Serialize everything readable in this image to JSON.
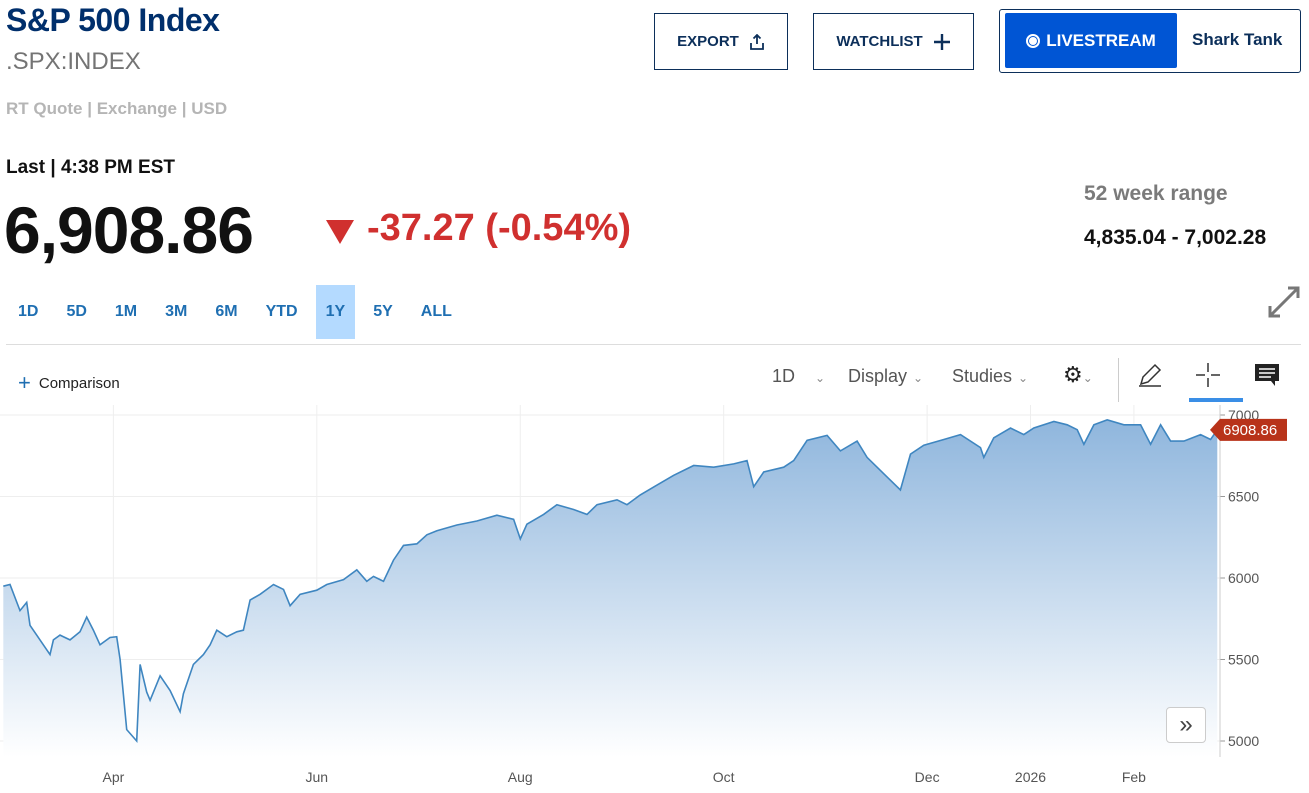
{
  "header": {
    "title": "S&P 500 Index",
    "symbol": ".SPX:INDEX",
    "quote_meta": "RT Quote | Exchange | USD"
  },
  "buttons": {
    "export": "EXPORT",
    "watchlist": "WATCHLIST",
    "livestream": "LIVESTREAM",
    "shark_tank": "Shark Tank"
  },
  "quote": {
    "last_time": "Last | 4:38 PM EST",
    "price": "6,908.86",
    "change": "-37.27 (-0.54%)",
    "direction": "down",
    "range_label": "52 week range",
    "range_value": "4,835.04 - 7,002.28"
  },
  "colors": {
    "brand": "#002f6c",
    "down": "#d0302f",
    "line": "#3f86c0",
    "fill_top": "#8fb6dd",
    "tab_active": "#b4daff",
    "price_tag": "#b8331a"
  },
  "range_tabs": [
    {
      "label": "1D"
    },
    {
      "label": "5D"
    },
    {
      "label": "1M"
    },
    {
      "label": "3M"
    },
    {
      "label": "6M"
    },
    {
      "label": "YTD"
    },
    {
      "label": "1Y",
      "active": true
    },
    {
      "label": "5Y"
    },
    {
      "label": "ALL"
    }
  ],
  "toolbar": {
    "comparison": "Comparison",
    "interval": "1D",
    "display": "Display",
    "studies": "Studies",
    "icons": [
      "gear-icon",
      "pencil-icon",
      "crosshair-icon",
      "comment-icon",
      "expand-icon",
      "double-chevron-right-icon"
    ]
  },
  "chart_data": {
    "type": "area",
    "ylim": [
      4980,
      7040
    ],
    "yticks": [
      {
        "label": "7000",
        "value": 7000
      },
      {
        "label": "6500",
        "value": 6500
      },
      {
        "label": "6000",
        "value": 6000
      },
      {
        "label": "5500",
        "value": 5500
      },
      {
        "label": "5000",
        "value": 5000
      }
    ],
    "xticks": [
      {
        "label": "Apr",
        "date": "2025-04-01"
      },
      {
        "label": "Jun",
        "date": "2025-06-01"
      },
      {
        "label": "Aug",
        "date": "2025-08-01"
      },
      {
        "label": "Oct",
        "date": "2025-10-01"
      },
      {
        "label": "Dec",
        "date": "2025-12-01"
      },
      {
        "label": "2026",
        "date": "2026-01-01"
      },
      {
        "label": "Feb",
        "date": "2026-02-01"
      }
    ],
    "xlim": [
      "2025-02-26",
      "2026-02-28"
    ],
    "last_value_label": "6908.86",
    "points": [
      [
        "2025-02-27",
        5950
      ],
      [
        "2025-03-01",
        5960
      ],
      [
        "2025-03-04",
        5800
      ],
      [
        "2025-03-06",
        5850
      ],
      [
        "2025-03-07",
        5710
      ],
      [
        "2025-03-10",
        5620
      ],
      [
        "2025-03-13",
        5530
      ],
      [
        "2025-03-14",
        5620
      ],
      [
        "2025-03-16",
        5650
      ],
      [
        "2025-03-19",
        5620
      ],
      [
        "2025-03-22",
        5670
      ],
      [
        "2025-03-24",
        5760
      ],
      [
        "2025-03-26",
        5680
      ],
      [
        "2025-03-28",
        5590
      ],
      [
        "2025-03-31",
        5635
      ],
      [
        "2025-04-02",
        5640
      ],
      [
        "2025-04-03",
        5500
      ],
      [
        "2025-04-05",
        5070
      ],
      [
        "2025-04-08",
        5000
      ],
      [
        "2025-04-09",
        5470
      ],
      [
        "2025-04-11",
        5300
      ],
      [
        "2025-04-12",
        5250
      ],
      [
        "2025-04-15",
        5400
      ],
      [
        "2025-04-18",
        5310
      ],
      [
        "2025-04-21",
        5180
      ],
      [
        "2025-04-22",
        5290
      ],
      [
        "2025-04-25",
        5470
      ],
      [
        "2025-04-28",
        5530
      ],
      [
        "2025-04-30",
        5590
      ],
      [
        "2025-05-02",
        5680
      ],
      [
        "2025-05-05",
        5640
      ],
      [
        "2025-05-08",
        5670
      ],
      [
        "2025-05-10",
        5680
      ],
      [
        "2025-05-12",
        5865
      ],
      [
        "2025-05-15",
        5900
      ],
      [
        "2025-05-19",
        5960
      ],
      [
        "2025-05-22",
        5930
      ],
      [
        "2025-05-24",
        5830
      ],
      [
        "2025-05-27",
        5900
      ],
      [
        "2025-06-01",
        5925
      ],
      [
        "2025-06-04",
        5960
      ],
      [
        "2025-06-09",
        5990
      ],
      [
        "2025-06-13",
        6050
      ],
      [
        "2025-06-16",
        5980
      ],
      [
        "2025-06-18",
        6010
      ],
      [
        "2025-06-21",
        5980
      ],
      [
        "2025-06-24",
        6110
      ],
      [
        "2025-06-27",
        6200
      ],
      [
        "2025-07-01",
        6210
      ],
      [
        "2025-07-04",
        6265
      ],
      [
        "2025-07-07",
        6290
      ],
      [
        "2025-07-13",
        6325
      ],
      [
        "2025-07-19",
        6350
      ],
      [
        "2025-07-25",
        6385
      ],
      [
        "2025-07-30",
        6360
      ],
      [
        "2025-08-01",
        6240
      ],
      [
        "2025-08-03",
        6330
      ],
      [
        "2025-08-08",
        6390
      ],
      [
        "2025-08-12",
        6450
      ],
      [
        "2025-08-17",
        6420
      ],
      [
        "2025-08-21",
        6390
      ],
      [
        "2025-08-24",
        6450
      ],
      [
        "2025-08-30",
        6480
      ],
      [
        "2025-09-02",
        6450
      ],
      [
        "2025-09-06",
        6510
      ],
      [
        "2025-09-11",
        6570
      ],
      [
        "2025-09-16",
        6630
      ],
      [
        "2025-09-22",
        6690
      ],
      [
        "2025-09-28",
        6680
      ],
      [
        "2025-10-04",
        6700
      ],
      [
        "2025-10-08",
        6720
      ],
      [
        "2025-10-10",
        6560
      ],
      [
        "2025-10-13",
        6650
      ],
      [
        "2025-10-19",
        6680
      ],
      [
        "2025-10-22",
        6720
      ],
      [
        "2025-10-26",
        6845
      ],
      [
        "2025-11-01",
        6875
      ],
      [
        "2025-11-05",
        6780
      ],
      [
        "2025-11-10",
        6840
      ],
      [
        "2025-11-13",
        6740
      ],
      [
        "2025-11-17",
        6660
      ],
      [
        "2025-11-20",
        6600
      ],
      [
        "2025-11-23",
        6540
      ],
      [
        "2025-11-26",
        6760
      ],
      [
        "2025-11-30",
        6815
      ],
      [
        "2025-12-06",
        6850
      ],
      [
        "2025-12-11",
        6880
      ],
      [
        "2025-12-17",
        6800
      ],
      [
        "2025-12-18",
        6740
      ],
      [
        "2025-12-21",
        6860
      ],
      [
        "2025-12-26",
        6920
      ],
      [
        "2025-12-30",
        6880
      ],
      [
        "2026-01-02",
        6920
      ],
      [
        "2026-01-08",
        6960
      ],
      [
        "2026-01-12",
        6940
      ],
      [
        "2026-01-15",
        6910
      ],
      [
        "2026-01-17",
        6820
      ],
      [
        "2026-01-20",
        6940
      ],
      [
        "2026-01-24",
        6970
      ],
      [
        "2026-01-29",
        6940
      ],
      [
        "2026-02-03",
        6940
      ],
      [
        "2026-02-06",
        6820
      ],
      [
        "2026-02-09",
        6940
      ],
      [
        "2026-02-12",
        6840
      ],
      [
        "2026-02-16",
        6840
      ],
      [
        "2026-02-21",
        6880
      ],
      [
        "2026-02-24",
        6850
      ],
      [
        "2026-02-26",
        6909
      ]
    ]
  }
}
